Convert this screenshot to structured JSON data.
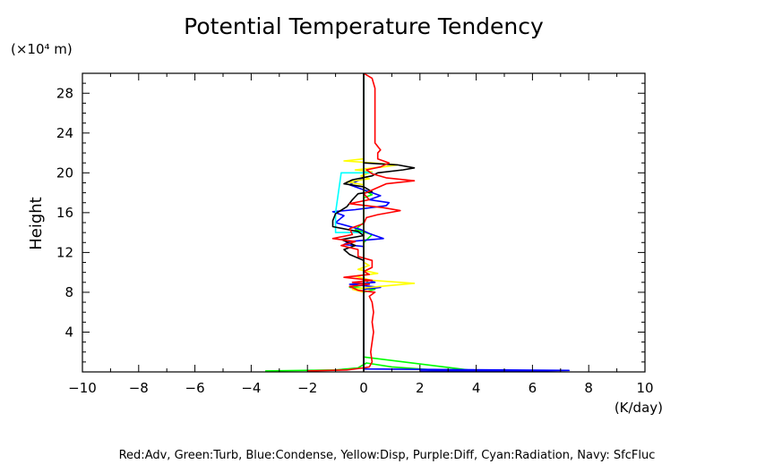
{
  "chart_data": {
    "type": "line",
    "title": "Potential Temperature Tendency",
    "ylabel": "Height",
    "y_unit": "(×10⁴ m)",
    "x_unit": "(K/day)",
    "xlim": [
      -10,
      10
    ],
    "ylim": [
      0,
      30
    ],
    "x_ticks": [
      -10,
      -8,
      -6,
      -4,
      -2,
      0,
      2,
      4,
      6,
      8,
      10
    ],
    "x_tick_labels": [
      "−10",
      "−8",
      "−6",
      "−4",
      "−2",
      "0",
      "2",
      "4",
      "6",
      "8",
      "10"
    ],
    "y_ticks": [
      4,
      8,
      12,
      16,
      20,
      24,
      28
    ],
    "y_tick_labels": [
      "4",
      "8",
      "12",
      "16",
      "20",
      "24",
      "28"
    ],
    "grid": false,
    "legend_text": "Red:Adv, Green:Turb, Blue:Condense, Yellow:Disp, Purple:Diff, Cyan:Radiation, Navy: SfcFluc",
    "series": [
      {
        "color": "#00ff00",
        "points": [
          [
            -3.5,
            0.1
          ],
          [
            -1.0,
            0.2
          ],
          [
            -0.2,
            0.4
          ],
          [
            0.1,
            0.9
          ],
          [
            1.0,
            0.5
          ],
          [
            2.5,
            0.2
          ],
          [
            4.0,
            0.1
          ],
          [
            0.0,
            1.5
          ],
          [
            0.0,
            8.0
          ],
          [
            0.4,
            8.3
          ],
          [
            -0.5,
            8.5
          ],
          [
            0.2,
            8.8
          ],
          [
            0.0,
            9.5
          ],
          [
            0.0,
            13.0
          ],
          [
            0.3,
            13.8
          ],
          [
            -0.3,
            14.3
          ],
          [
            0.0,
            15.0
          ],
          [
            0.0,
            17.5
          ],
          [
            0.3,
            17.8
          ],
          [
            0.0,
            18.3
          ],
          [
            0.0,
            30.0
          ]
        ]
      },
      {
        "color": "#0000ff",
        "points": [
          [
            2.0,
            0.1
          ],
          [
            4.0,
            0.1
          ],
          [
            6.0,
            0.1
          ],
          [
            7.3,
            0.15
          ],
          [
            0.0,
            0.3
          ],
          [
            0.0,
            8.3
          ],
          [
            0.6,
            8.5
          ],
          [
            -0.5,
            8.8
          ],
          [
            0.4,
            9.0
          ],
          [
            0.0,
            9.4
          ],
          [
            0.0,
            12.6
          ],
          [
            -0.7,
            12.8
          ],
          [
            -0.5,
            13.1
          ],
          [
            0.7,
            13.4
          ],
          [
            0.2,
            13.9
          ],
          [
            -0.1,
            14.3
          ],
          [
            -1.0,
            15.0
          ],
          [
            -0.7,
            15.7
          ],
          [
            -1.1,
            16.1
          ],
          [
            -0.3,
            16.3
          ],
          [
            0.8,
            16.7
          ],
          [
            0.9,
            17.0
          ],
          [
            0.2,
            17.3
          ],
          [
            0.6,
            17.7
          ],
          [
            0.1,
            18.2
          ],
          [
            -0.5,
            18.8
          ],
          [
            0.0,
            19.5
          ],
          [
            0.0,
            30.0
          ]
        ]
      },
      {
        "color": "#ffff00",
        "points": [
          [
            0.0,
            8.0
          ],
          [
            -0.4,
            8.3
          ],
          [
            0.6,
            8.6
          ],
          [
            1.8,
            8.9
          ],
          [
            0.3,
            9.2
          ],
          [
            -0.3,
            9.6
          ],
          [
            0.5,
            9.9
          ],
          [
            -0.2,
            10.3
          ],
          [
            0.2,
            10.7
          ],
          [
            0.0,
            11.0
          ],
          [
            0.0,
            18.8
          ],
          [
            -0.6,
            19.1
          ],
          [
            0.2,
            19.4
          ],
          [
            -0.1,
            19.7
          ],
          [
            0.3,
            20.1
          ],
          [
            -0.3,
            20.3
          ],
          [
            0.7,
            20.6
          ],
          [
            1.2,
            20.8
          ],
          [
            0.3,
            21.0
          ],
          [
            -0.7,
            21.2
          ],
          [
            0.0,
            21.4
          ],
          [
            0.0,
            30.0
          ]
        ]
      },
      {
        "color": "#00ffff",
        "points": [
          [
            0.0,
            14.0
          ],
          [
            -1.0,
            14.0
          ],
          [
            -1.0,
            16.0
          ],
          [
            -0.8,
            20.0
          ],
          [
            0.3,
            20.0
          ],
          [
            0.0,
            20.1
          ],
          [
            0.0,
            30.0
          ]
        ]
      },
      {
        "color": "#000000",
        "points": [
          [
            0.0,
            0.1
          ],
          [
            0.0,
            11.2
          ],
          [
            -0.5,
            11.8
          ],
          [
            -0.7,
            12.3
          ],
          [
            -0.3,
            12.7
          ],
          [
            -0.8,
            13.3
          ],
          [
            0.0,
            13.7
          ],
          [
            -0.2,
            14.1
          ],
          [
            -1.1,
            14.6
          ],
          [
            -1.1,
            15.2
          ],
          [
            -1.0,
            15.9
          ],
          [
            -0.6,
            16.6
          ],
          [
            -0.4,
            17.3
          ],
          [
            -0.2,
            17.9
          ],
          [
            0.3,
            18.1
          ],
          [
            0.0,
            18.6
          ],
          [
            -0.7,
            18.9
          ],
          [
            -0.4,
            19.3
          ],
          [
            0.3,
            19.7
          ],
          [
            0.5,
            20.0
          ],
          [
            1.4,
            20.3
          ],
          [
            1.8,
            20.5
          ],
          [
            1.2,
            20.8
          ],
          [
            0.0,
            21.0
          ],
          [
            0.0,
            30.0
          ]
        ]
      },
      {
        "color": "#ff0000",
        "points": [
          [
            -2.0,
            0.1
          ],
          [
            -0.6,
            0.2
          ],
          [
            0.0,
            0.4
          ],
          [
            0.2,
            0.5
          ],
          [
            0.3,
            1.0
          ],
          [
            0.25,
            2.0
          ],
          [
            0.3,
            3.0
          ],
          [
            0.35,
            4.0
          ],
          [
            0.3,
            5.0
          ],
          [
            0.35,
            6.0
          ],
          [
            0.3,
            7.0
          ],
          [
            0.2,
            7.6
          ],
          [
            0.4,
            8.0
          ],
          [
            -0.2,
            8.2
          ],
          [
            -0.5,
            8.6
          ],
          [
            0.2,
            8.8
          ],
          [
            -0.4,
            9.0
          ],
          [
            0.3,
            9.2
          ],
          [
            -0.7,
            9.5
          ],
          [
            0.2,
            9.8
          ],
          [
            0.0,
            10.1
          ],
          [
            0.3,
            10.5
          ],
          [
            0.3,
            11.2
          ],
          [
            -0.2,
            11.6
          ],
          [
            -0.2,
            12.3
          ],
          [
            -0.8,
            12.7
          ],
          [
            -0.3,
            13.1
          ],
          [
            -1.1,
            13.4
          ],
          [
            -0.4,
            13.8
          ],
          [
            -0.5,
            14.4
          ],
          [
            0.0,
            14.9
          ],
          [
            0.1,
            15.5
          ],
          [
            0.5,
            15.8
          ],
          [
            1.3,
            16.2
          ],
          [
            0.7,
            16.5
          ],
          [
            -0.5,
            16.9
          ],
          [
            0.2,
            17.3
          ],
          [
            0.0,
            17.9
          ],
          [
            0.4,
            18.4
          ],
          [
            0.8,
            18.9
          ],
          [
            1.8,
            19.2
          ],
          [
            0.8,
            19.5
          ],
          [
            0.3,
            19.9
          ],
          [
            0.1,
            20.3
          ],
          [
            0.6,
            20.6
          ],
          [
            0.9,
            21.0
          ],
          [
            0.5,
            21.4
          ],
          [
            0.5,
            22.0
          ],
          [
            0.6,
            22.3
          ],
          [
            0.4,
            23.0
          ],
          [
            0.4,
            25.0
          ],
          [
            0.4,
            27.0
          ],
          [
            0.4,
            28.5
          ],
          [
            0.3,
            29.5
          ],
          [
            0.0,
            30.0
          ]
        ]
      }
    ]
  }
}
